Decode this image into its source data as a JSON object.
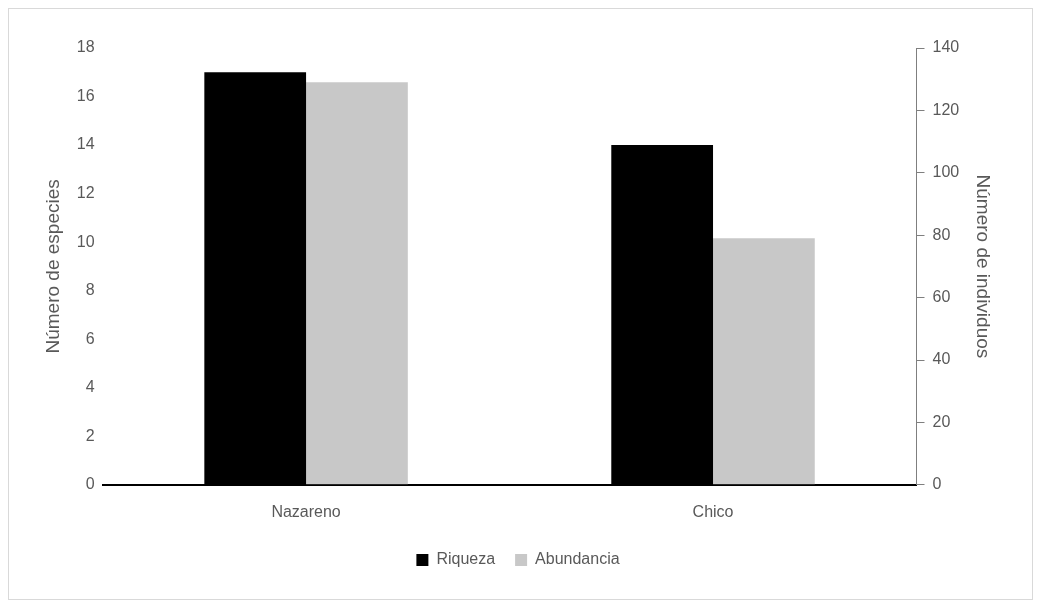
{
  "chart_data": {
    "type": "bar",
    "categories": [
      "Nazareno",
      "Chico"
    ],
    "series": [
      {
        "name": "Riqueza",
        "color": "#000000",
        "values": [
          17,
          14
        ]
      },
      {
        "name": "Abundancia",
        "color": "#c8c8c8",
        "values": [
          129,
          79
        ],
        "axis": "y2"
      }
    ],
    "ylabel": "Número de especies",
    "y2label": "Número de individuos",
    "ylim": [
      0,
      18
    ],
    "yticks": [
      0,
      2,
      4,
      6,
      8,
      10,
      12,
      14,
      16,
      18
    ],
    "y2lim": [
      0,
      140
    ],
    "y2ticks": [
      0,
      20,
      40,
      60,
      80,
      100,
      120,
      140
    ],
    "grid": false,
    "legend": "bottom"
  }
}
